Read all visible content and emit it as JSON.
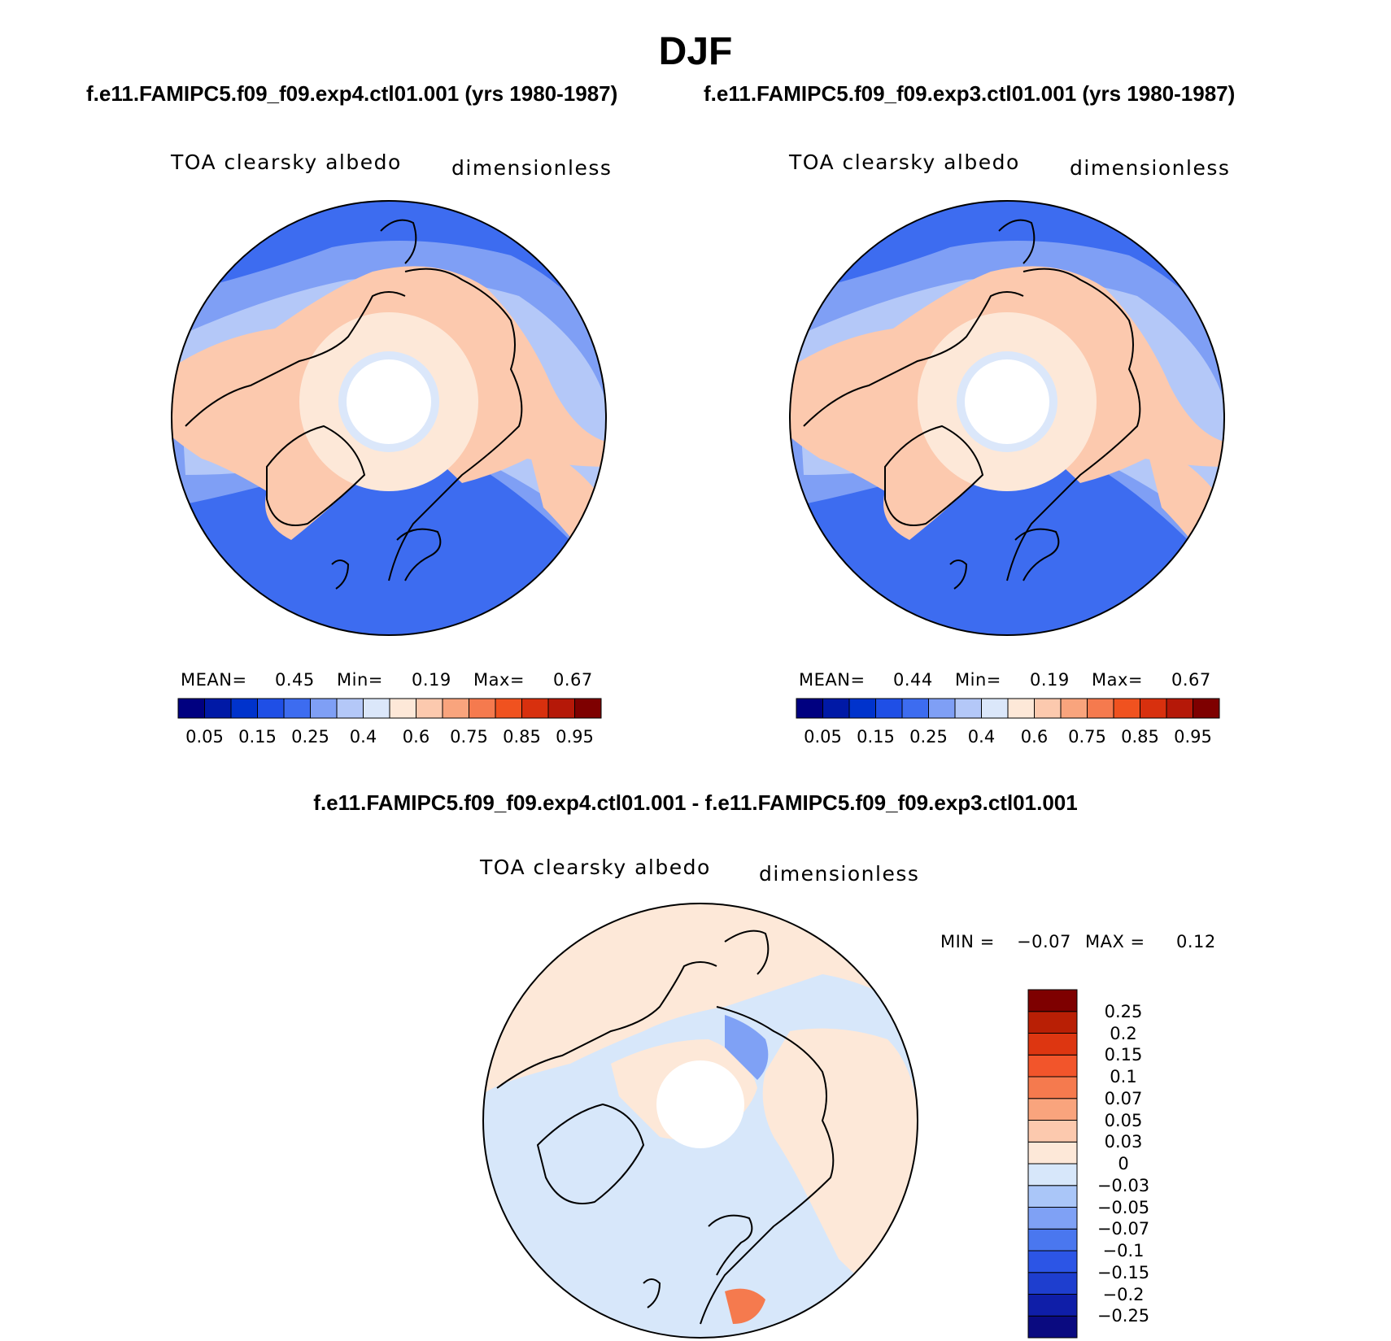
{
  "figure": {
    "title": "DJF",
    "diff_title": "f.e11.FAMIPC5.f09_f09.exp4.ctl01.001 - f.e11.FAMIPC5.f09_f09.exp3.ctl01.001"
  },
  "panels": [
    {
      "case_title": "f.e11.FAMIPC5.f09_f09.exp4.ctl01.001 (yrs 1980-1987)",
      "variable": "TOA clearsky albedo",
      "units": "dimensionless",
      "mean_label": "MEAN=",
      "mean": "0.45",
      "min_label": "Min=",
      "min": "0.19",
      "max_label": "Max=",
      "max": "0.67"
    },
    {
      "case_title": "f.e11.FAMIPC5.f09_f09.exp3.ctl01.001 (yrs 1980-1987)",
      "variable": "TOA clearsky albedo",
      "units": "dimensionless",
      "mean_label": "MEAN=",
      "mean": "0.44",
      "min_label": "Min=",
      "min": "0.19",
      "max_label": "Max=",
      "max": "0.67"
    }
  ],
  "diff_panel": {
    "variable": "TOA clearsky albedo",
    "units": "dimensionless",
    "min_label": "MIN =",
    "min": "−0.07",
    "max_label": "MAX =",
    "max": "0.12"
  },
  "colorbar_main": {
    "colors": [
      "#000080",
      "#0019a6",
      "#0033cc",
      "#1f4fe6",
      "#3d6cf0",
      "#7f9ff5",
      "#b4c8f8",
      "#dbe7fa",
      "#fde8d8",
      "#fcc9ae",
      "#f9a47d",
      "#f57a4e",
      "#f0521f",
      "#d8300e",
      "#b51808",
      "#7e0000"
    ],
    "tick_labels": [
      "0.05",
      "0.15",
      "0.25",
      "0.4",
      "0.6",
      "0.75",
      "0.85",
      "0.95"
    ]
  },
  "colorbar_diff": {
    "colors": [
      "#0a0a80",
      "#0f1ea8",
      "#1e3ecf",
      "#2c55e6",
      "#4a77ef",
      "#7fa1f5",
      "#aac6f8",
      "#d7e7fa",
      "#fde8d8",
      "#fcc9ae",
      "#f9a47d",
      "#f57a4e",
      "#f2552b",
      "#dd3611",
      "#b91f05",
      "#7e0000"
    ],
    "tick_labels": [
      "−0.25",
      "−0.2",
      "−0.15",
      "−0.1",
      "−0.07",
      "−0.05",
      "−0.03",
      "0",
      "0.03",
      "0.05",
      "0.07",
      "0.1",
      "0.15",
      "0.2",
      "0.25"
    ]
  },
  "map_colors": {
    "ocean_deep": "#3d6cf0",
    "ocean_mid": "#7f9ff5",
    "ocean_light": "#b4c8f8",
    "near_pole": "#dbe7fa",
    "land": "#fcc9ae",
    "land_pale": "#fde8d8",
    "diff_neg": "#d7e7fa",
    "diff_pos": "#fde8d8",
    "diff_strong_neg": "#7fa1f5",
    "diff_strong_pos": "#f57a4e"
  }
}
